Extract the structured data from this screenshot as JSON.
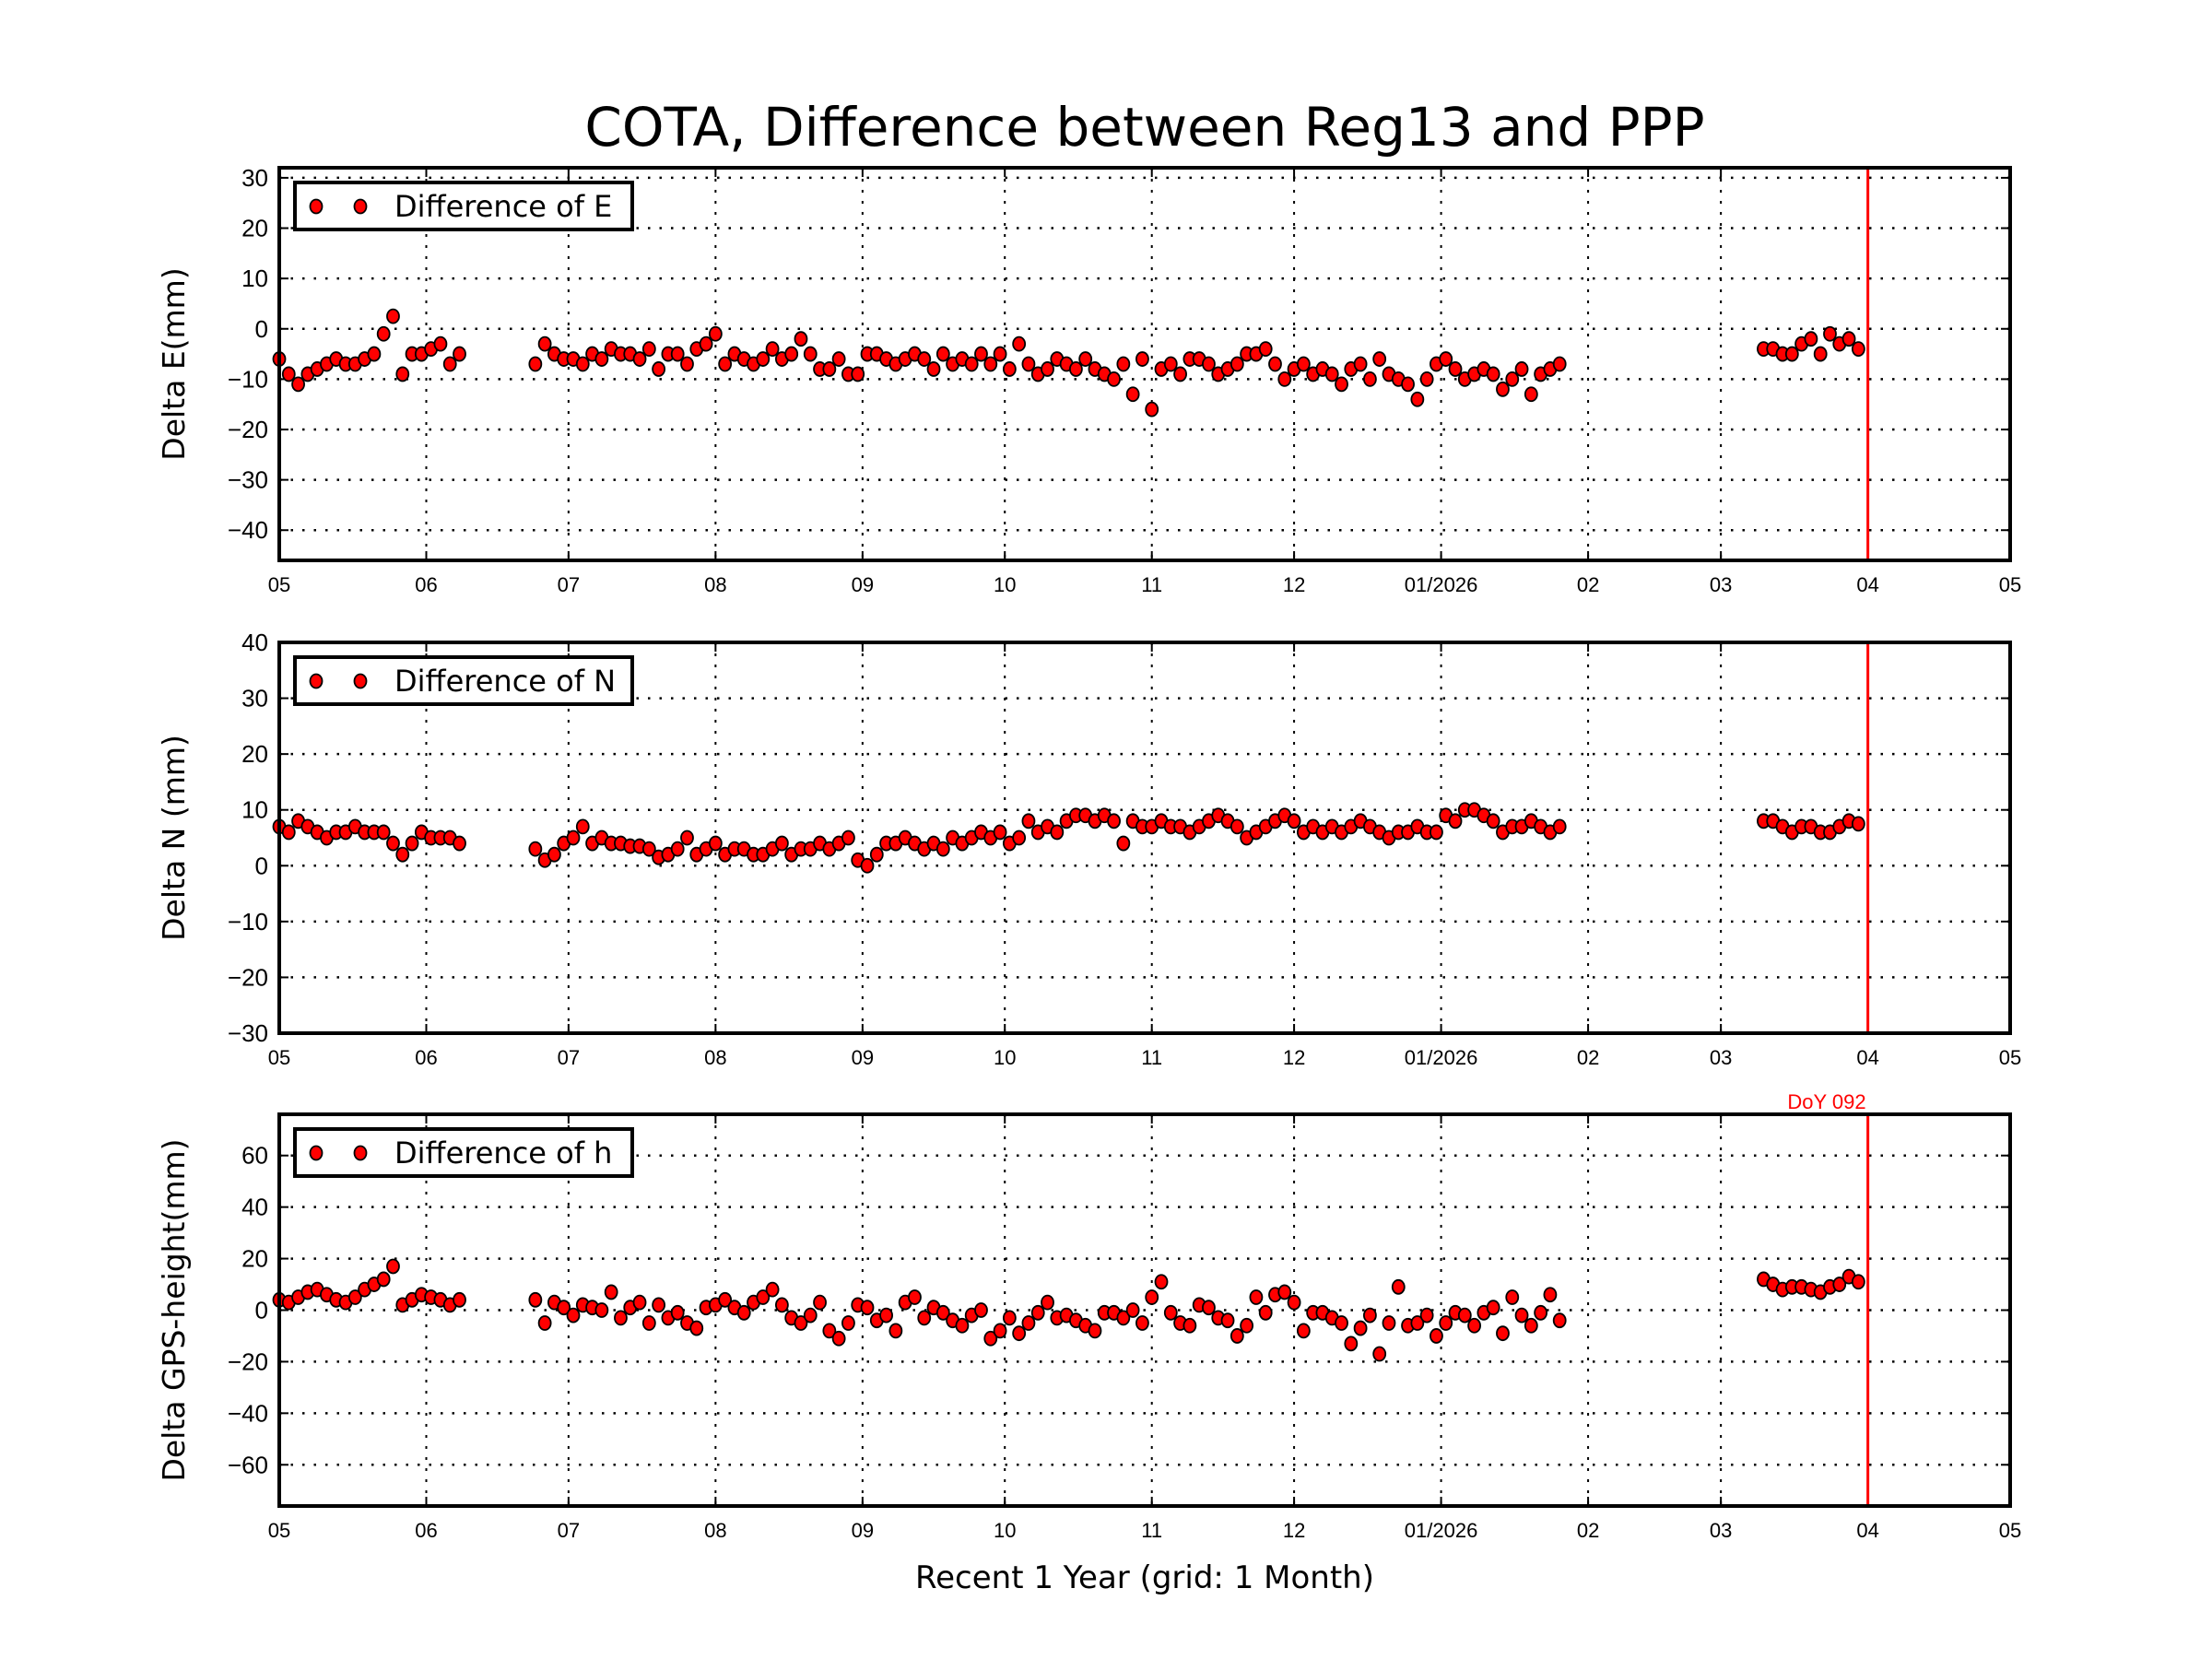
{
  "chart_data": [
    {
      "type": "scatter",
      "title": "COTA, Difference between Reg13 and PPP",
      "ylabel": "Delta E(mm)",
      "xlabel": "",
      "legend": {
        "label": "Difference of E",
        "placement": "top-left"
      },
      "ylim": [
        -46,
        32
      ],
      "yticks": [
        30,
        20,
        10,
        0,
        -10,
        -20,
        -30,
        -40
      ],
      "ytick_labels": [
        "30",
        "20",
        "10",
        "0",
        "−10",
        "−20",
        "−30",
        "−40"
      ],
      "values": [
        -6,
        -9,
        -11,
        -9,
        -8,
        -7,
        -6,
        -7,
        -7,
        -6,
        -5,
        -1,
        2.5,
        -9,
        -5,
        -5,
        -4,
        -3,
        -7,
        -5,
        -7,
        -3,
        -5,
        -6,
        -6,
        -7,
        -5,
        -6,
        -4,
        -5,
        -5,
        -6,
        -4,
        -8,
        -5,
        -5,
        -7,
        -4,
        -3,
        -1,
        -7,
        -5,
        -6,
        -7,
        -6,
        -4,
        -6,
        -5,
        -2,
        -5,
        -8,
        -8,
        -6,
        -9,
        -9,
        -5,
        -5,
        -6,
        -7,
        -6,
        -5,
        -6,
        -8,
        -5,
        -7,
        -6,
        -7,
        -5,
        -7,
        -5,
        -8,
        -3,
        -7,
        -9,
        -8,
        -6,
        -7,
        -8,
        -6,
        -8,
        -9,
        -10,
        -7,
        -13,
        -6,
        -16,
        -8,
        -7,
        -9,
        -6,
        -6,
        -7,
        -9,
        -8,
        -7,
        -5,
        -5,
        -4,
        -7,
        -10,
        -8,
        -7,
        -9,
        -8,
        -9,
        -11,
        -8,
        -7,
        -10,
        -6,
        -9,
        -10,
        -11,
        -14,
        -10,
        -7,
        -6,
        -8,
        -10,
        -9,
        -8,
        -9,
        -12,
        -10,
        -8,
        -13,
        -9,
        -8,
        -7,
        -4,
        -4,
        -5,
        -5,
        -3,
        -2,
        -5,
        -1,
        -3,
        -2,
        -4
      ]
    },
    {
      "type": "scatter",
      "ylabel": "Delta N (mm)",
      "xlabel": "",
      "legend": {
        "label": "Difference of N",
        "placement": "top-left"
      },
      "ylim": [
        -30,
        40
      ],
      "yticks": [
        40,
        30,
        20,
        10,
        0,
        -10,
        -20,
        -30
      ],
      "ytick_labels": [
        "40",
        "30",
        "20",
        "10",
        "0",
        "−10",
        "−20",
        "−30"
      ],
      "values": [
        7,
        6,
        8,
        7,
        6,
        5,
        6,
        6,
        7,
        6,
        6,
        6,
        4,
        2,
        4,
        6,
        5,
        5,
        5,
        4,
        3,
        1,
        2,
        4,
        5,
        7,
        4,
        5,
        4,
        4,
        3.5,
        3.5,
        3,
        1.5,
        2,
        3,
        5,
        2,
        3,
        4,
        2,
        3,
        3,
        2,
        2,
        3,
        4,
        2,
        3,
        3,
        4,
        3,
        4,
        5,
        1,
        0,
        2,
        4,
        4,
        5,
        4,
        3,
        4,
        3,
        5,
        4,
        5,
        6,
        5,
        6,
        4,
        5,
        8,
        6,
        7,
        6,
        8,
        9,
        9,
        8,
        9,
        8,
        4,
        8,
        7,
        7,
        8,
        7,
        7,
        6,
        7,
        8,
        9,
        8,
        7,
        5,
        6,
        7,
        8,
        9,
        8,
        6,
        7,
        6,
        7,
        6,
        7,
        8,
        7,
        6,
        5,
        6,
        6,
        7,
        6,
        6,
        9,
        8,
        10,
        10,
        9,
        8,
        6,
        7,
        7,
        8,
        7,
        6,
        7,
        8,
        8,
        7,
        6,
        7,
        7,
        6,
        6,
        7,
        8,
        7.5
      ]
    },
    {
      "type": "scatter",
      "ylabel": "Delta GPS-height(mm)",
      "xlabel": "Recent 1 Year (grid: 1 Month)",
      "legend": {
        "label": "Difference of h",
        "placement": "top-left"
      },
      "annotation": "DoY 092",
      "ylim": [
        -76,
        76
      ],
      "yticks": [
        60,
        40,
        20,
        0,
        -20,
        -40,
        -60
      ],
      "ytick_labels": [
        "60",
        "40",
        "20",
        "0",
        "−20",
        "−40",
        "−60"
      ],
      "values": [
        4,
        3,
        5,
        7,
        8,
        6,
        4,
        3,
        5,
        8,
        10,
        12,
        17,
        2,
        4,
        6,
        5,
        4,
        2,
        4,
        4,
        -5,
        3,
        1,
        -2,
        2,
        1,
        0,
        7,
        -3,
        1,
        3,
        -5,
        2,
        -3,
        -1,
        -5,
        -7,
        1,
        2,
        4,
        1,
        -1,
        3,
        5,
        8,
        2,
        -3,
        -5,
        -2,
        3,
        -8,
        -11,
        -5,
        2,
        1,
        -4,
        -2,
        -8,
        3,
        5,
        -3,
        1,
        -1,
        -4,
        -6,
        -2,
        0,
        -11,
        -8,
        -3,
        -9,
        -5,
        -1,
        3,
        -3,
        -2,
        -4,
        -6,
        -8,
        -1,
        -1,
        -3,
        0,
        -5,
        5,
        11,
        -1,
        -5,
        -6,
        2,
        1,
        -3,
        -4,
        -10,
        -6,
        5,
        -1,
        6,
        7,
        3,
        -8,
        -1,
        -1,
        -3,
        -5,
        -13,
        -7,
        -2,
        -17,
        -5,
        9,
        -6,
        -5,
        -2,
        -10,
        -5,
        -1,
        -2,
        -6,
        -1,
        1,
        -9,
        5,
        -2,
        -6,
        -1,
        6,
        -4,
        12,
        10,
        8,
        9,
        9,
        8,
        7,
        9,
        10,
        13,
        11
      ]
    }
  ],
  "shared_x": {
    "unit": "days since 2025-05-01",
    "xlim": [
      0,
      365
    ],
    "x_tick_days": [
      0,
      31,
      61,
      92,
      123,
      153,
      184,
      214,
      245,
      276,
      304,
      335,
      365
    ],
    "x_tick_labels": [
      "05",
      "06",
      "07",
      "08",
      "09",
      "10",
      "11",
      "12",
      "01/2026",
      "02",
      "03",
      "04",
      "05"
    ],
    "marker_line_day": 335,
    "days": [
      0,
      2,
      4,
      6,
      8,
      10,
      12,
      14,
      16,
      18,
      20,
      22,
      24,
      26,
      28,
      30,
      32,
      34,
      36,
      38,
      54,
      56,
      58,
      60,
      62,
      64,
      66,
      68,
      70,
      72,
      74,
      76,
      78,
      80,
      82,
      84,
      86,
      88,
      90,
      92,
      94,
      96,
      98,
      100,
      102,
      104,
      106,
      108,
      110,
      112,
      114,
      116,
      118,
      120,
      122,
      124,
      126,
      128,
      130,
      132,
      134,
      136,
      138,
      140,
      142,
      144,
      146,
      148,
      150,
      152,
      154,
      156,
      158,
      160,
      162,
      164,
      166,
      168,
      170,
      172,
      174,
      176,
      178,
      180,
      182,
      184,
      186,
      188,
      190,
      192,
      194,
      196,
      198,
      200,
      202,
      204,
      206,
      208,
      210,
      212,
      214,
      216,
      218,
      220,
      222,
      224,
      226,
      228,
      230,
      232,
      234,
      236,
      238,
      240,
      242,
      244,
      246,
      248,
      250,
      252,
      254,
      256,
      258,
      260,
      262,
      264,
      266,
      268,
      270,
      313,
      315,
      317,
      319,
      321,
      323,
      325,
      327,
      329,
      331,
      333
    ]
  },
  "colors": {
    "marker": "#ff0000",
    "marker_edge": "#000000",
    "marker_line": "#ff0000",
    "grid": "#000000"
  }
}
